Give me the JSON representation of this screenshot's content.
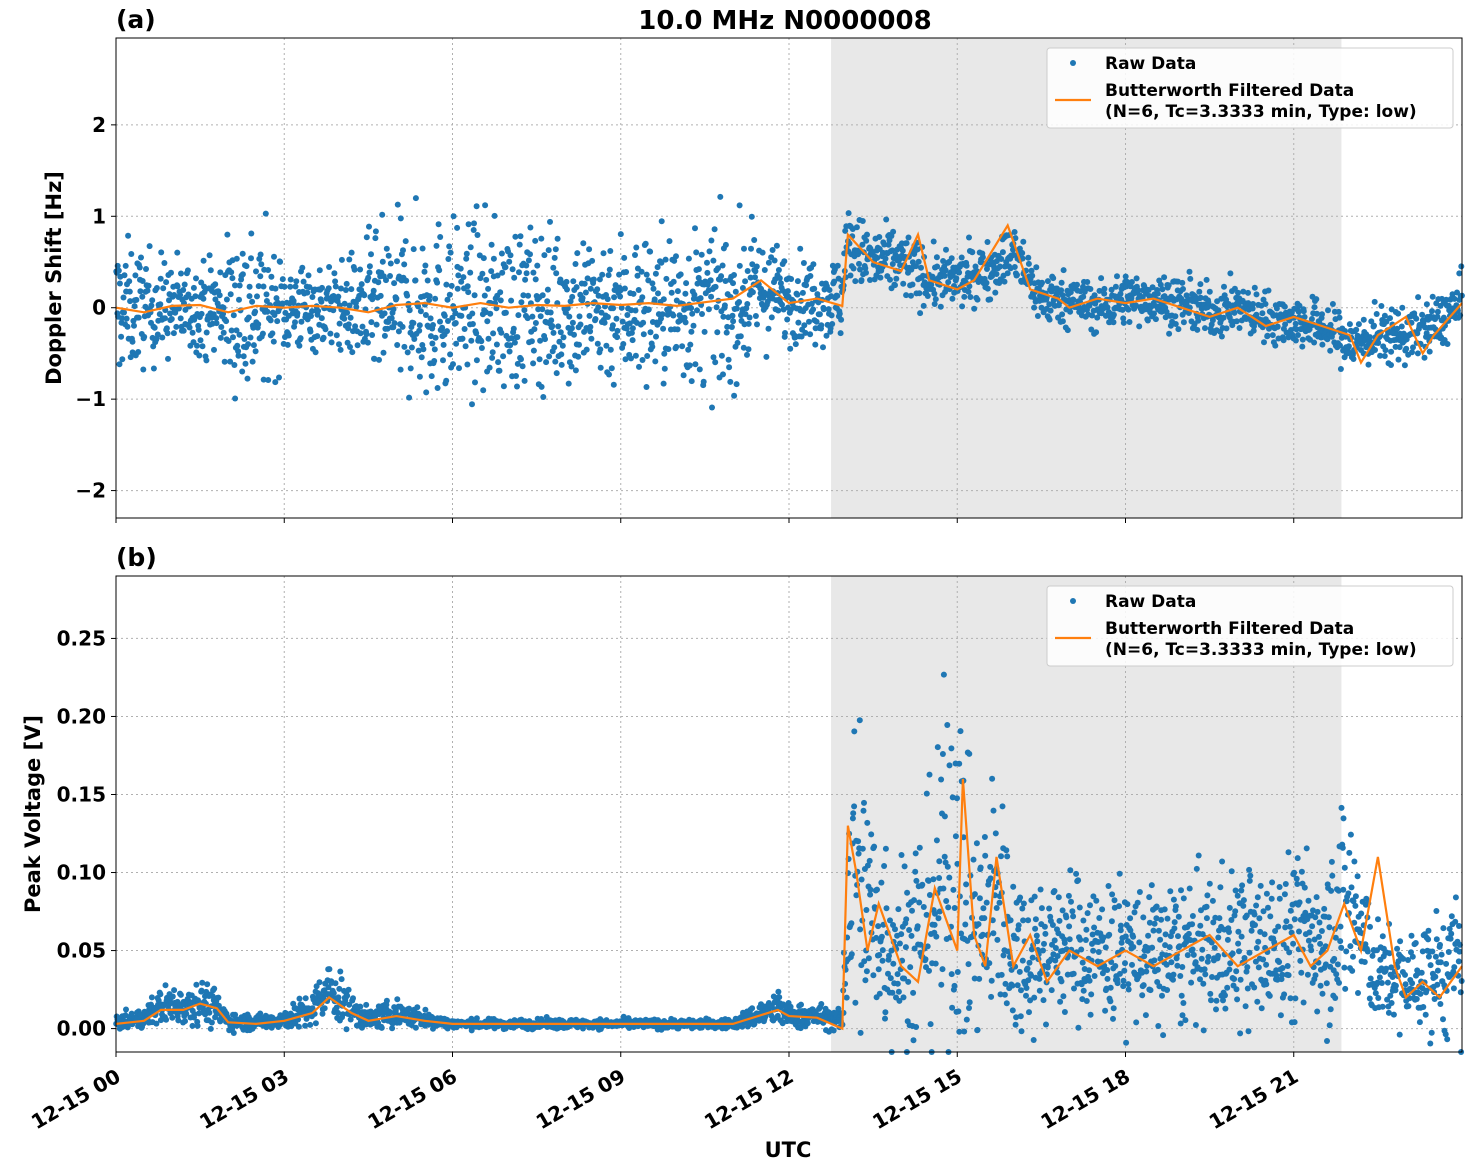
{
  "figure": {
    "title": "10.0 MHz N0000008",
    "xlabel": "UTC"
  },
  "colors": {
    "raw": "#1f77b4",
    "filtered": "#ff7f0e",
    "shade": "#e8e8e8",
    "grid": "#b0b0b0"
  },
  "chart_data": [
    {
      "type": "scatter",
      "panel_label": "(a)",
      "ylabel": "Doppler Shift [Hz]",
      "xlim_hours": [
        0,
        24
      ],
      "ylim": [
        -2.3,
        2.95
      ],
      "yticks": [
        -2,
        -1,
        0,
        1,
        2
      ],
      "ytick_labels": [
        "−2",
        "−1",
        "0",
        "1",
        "2"
      ],
      "xticks_hours": [
        0,
        3,
        6,
        9,
        12,
        15,
        18,
        21
      ],
      "xtick_labels": [
        "12-15 00",
        "12-15 03",
        "12-15 06",
        "12-15 09",
        "12-15 12",
        "12-15 15",
        "12-15 18",
        "12-15 21"
      ],
      "grid": true,
      "legend_position": "top-right",
      "shaded_span_hours": [
        12.75,
        21.85
      ],
      "series": [
        {
          "name": "Raw Data",
          "style": "points",
          "x_hours": [
            0,
            0.5,
            1,
            1.5,
            2,
            2.3,
            2.5,
            3,
            3.5,
            4,
            4.5,
            5,
            5.5,
            6,
            6.5,
            7,
            7.5,
            8,
            8.5,
            9,
            9.5,
            10,
            10.5,
            11,
            11.5,
            12,
            12.5,
            12.95,
            13,
            13.5,
            14,
            14.5,
            15,
            15.5,
            16,
            16.5,
            17,
            17.5,
            18,
            18.5,
            19,
            19.5,
            20,
            20.5,
            21,
            21.5,
            22,
            22.5,
            23,
            23.5,
            24
          ],
          "y_mean": [
            0,
            0,
            0,
            0,
            0,
            0,
            0,
            0,
            0,
            0,
            0,
            0,
            0,
            0,
            0,
            0,
            0,
            0,
            0,
            0,
            0,
            0,
            0,
            0,
            0.2,
            0.1,
            0.1,
            0.1,
            0.7,
            0.5,
            0.5,
            0.3,
            0.3,
            0.4,
            0.6,
            0.1,
            0.1,
            0.0,
            0.1,
            0.1,
            0.05,
            -0.05,
            0.0,
            -0.1,
            -0.15,
            -0.2,
            -0.4,
            -0.3,
            -0.3,
            -0.2,
            0.05
          ],
          "y_spread": [
            0.5,
            0.4,
            0.35,
            0.3,
            0.5,
            0.7,
            0.6,
            0.35,
            0.3,
            0.3,
            0.5,
            0.6,
            0.65,
            0.6,
            0.6,
            0.6,
            0.55,
            0.55,
            0.55,
            0.55,
            0.55,
            0.55,
            0.55,
            0.55,
            0.4,
            0.3,
            0.3,
            0.3,
            0.25,
            0.25,
            0.25,
            0.2,
            0.2,
            0.2,
            0.2,
            0.2,
            0.18,
            0.18,
            0.18,
            0.18,
            0.18,
            0.18,
            0.18,
            0.18,
            0.18,
            0.18,
            0.2,
            0.2,
            0.2,
            0.2,
            0.2
          ]
        },
        {
          "name": "Butterworth Filtered Data\n(N=6, Tc=3.3333 min, Type: low)",
          "style": "line",
          "x_hours": [
            0,
            0.5,
            1,
            1.5,
            2,
            2.5,
            3,
            3.5,
            4,
            4.5,
            5,
            5.5,
            6,
            6.5,
            7,
            7.5,
            8,
            8.5,
            9,
            9.5,
            10,
            10.5,
            11,
            11.5,
            12,
            12.5,
            12.95,
            13.05,
            13.5,
            14,
            14.3,
            14.5,
            15,
            15.3,
            15.5,
            15.9,
            16.3,
            16.8,
            17,
            17.5,
            18,
            18.5,
            19,
            19.5,
            20,
            20.5,
            21,
            21.5,
            22,
            22.2,
            22.5,
            23,
            23.3,
            23.5,
            24
          ],
          "y": [
            0,
            -0.05,
            0.02,
            0.03,
            -0.05,
            0.02,
            0.0,
            0.02,
            0.0,
            -0.05,
            0.03,
            0.05,
            0.0,
            0.05,
            0.0,
            0.03,
            0.02,
            0.05,
            0.03,
            0.05,
            0.02,
            0.06,
            0.1,
            0.3,
            0.05,
            0.1,
            0.02,
            0.8,
            0.5,
            0.4,
            0.8,
            0.3,
            0.2,
            0.3,
            0.5,
            0.9,
            0.2,
            0.1,
            0.0,
            0.1,
            0.05,
            0.1,
            0.0,
            -0.1,
            0.0,
            -0.2,
            -0.1,
            -0.2,
            -0.3,
            -0.6,
            -0.3,
            -0.1,
            -0.5,
            -0.3,
            0.05
          ]
        }
      ]
    },
    {
      "type": "scatter",
      "panel_label": "(b)",
      "ylabel": "Peak Voltage [V]",
      "xlim_hours": [
        0,
        24
      ],
      "ylim": [
        -0.015,
        0.29
      ],
      "yticks": [
        0.0,
        0.05,
        0.1,
        0.15,
        0.2,
        0.25
      ],
      "ytick_labels": [
        "0.00",
        "0.05",
        "0.10",
        "0.15",
        "0.20",
        "0.25"
      ],
      "xticks_hours": [
        0,
        3,
        6,
        9,
        12,
        15,
        18,
        21
      ],
      "xtick_labels": [
        "12-15 00",
        "12-15 03",
        "12-15 06",
        "12-15 09",
        "12-15 12",
        "12-15 15",
        "12-15 18",
        "12-15 21"
      ],
      "grid": true,
      "legend_position": "top-right",
      "shaded_span_hours": [
        12.75,
        21.85
      ],
      "series": [
        {
          "name": "Raw Data",
          "style": "points",
          "x_hours": [
            0,
            0.5,
            0.8,
            1.2,
            1.5,
            1.8,
            2,
            2.5,
            3,
            3.5,
            3.8,
            4.2,
            4.5,
            5,
            5.5,
            6,
            7,
            8,
            9,
            10,
            11,
            11.8,
            12,
            12.5,
            12.95,
            13.05,
            13.2,
            13.5,
            14,
            14.5,
            15,
            15.2,
            15.5,
            15.7,
            16,
            16.5,
            17,
            17.5,
            18,
            18.5,
            19,
            19.5,
            20,
            20.5,
            21,
            21.5,
            22,
            22.3,
            22.5,
            23,
            23.5,
            24
          ],
          "y_mean": [
            0.004,
            0.006,
            0.015,
            0.015,
            0.018,
            0.012,
            0.005,
            0.004,
            0.006,
            0.012,
            0.025,
            0.012,
            0.006,
            0.01,
            0.006,
            0.003,
            0.003,
            0.003,
            0.003,
            0.003,
            0.003,
            0.013,
            0.008,
            0.008,
            0.005,
            0.09,
            0.1,
            0.07,
            0.05,
            0.07,
            0.12,
            0.07,
            0.06,
            0.09,
            0.05,
            0.05,
            0.055,
            0.05,
            0.05,
            0.045,
            0.05,
            0.05,
            0.055,
            0.05,
            0.06,
            0.06,
            0.08,
            0.05,
            0.035,
            0.03,
            0.035,
            0.04
          ],
          "y_spread": [
            0.003,
            0.004,
            0.008,
            0.008,
            0.009,
            0.008,
            0.004,
            0.003,
            0.004,
            0.008,
            0.012,
            0.008,
            0.004,
            0.006,
            0.004,
            0.002,
            0.002,
            0.002,
            0.002,
            0.002,
            0.002,
            0.008,
            0.005,
            0.005,
            0.004,
            0.07,
            0.08,
            0.05,
            0.04,
            0.05,
            0.09,
            0.05,
            0.045,
            0.06,
            0.035,
            0.03,
            0.03,
            0.03,
            0.03,
            0.03,
            0.03,
            0.03,
            0.035,
            0.03,
            0.035,
            0.035,
            0.05,
            0.03,
            0.02,
            0.02,
            0.025,
            0.03
          ]
        },
        {
          "name": "Butterworth Filtered Data\n(N=6, Tc=3.3333 min, Type: low)",
          "style": "line",
          "x_hours": [
            0,
            0.5,
            0.8,
            1.2,
            1.5,
            1.8,
            2,
            2.5,
            3,
            3.5,
            3.8,
            4.2,
            4.5,
            5,
            5.5,
            6,
            7,
            8,
            9,
            10,
            11,
            11.8,
            12,
            12.5,
            12.95,
            13.05,
            13.2,
            13.4,
            13.6,
            13.8,
            14,
            14.3,
            14.6,
            15,
            15.1,
            15.3,
            15.5,
            15.7,
            16,
            16.3,
            16.6,
            17,
            17.5,
            18,
            18.5,
            19,
            19.5,
            20,
            20.5,
            21,
            21.3,
            21.6,
            21.9,
            22.2,
            22.5,
            22.8,
            23,
            23.3,
            23.6,
            24
          ],
          "y": [
            0.003,
            0.005,
            0.012,
            0.012,
            0.016,
            0.013,
            0.004,
            0.003,
            0.005,
            0.01,
            0.02,
            0.01,
            0.005,
            0.008,
            0.005,
            0.003,
            0.003,
            0.003,
            0.003,
            0.003,
            0.003,
            0.012,
            0.008,
            0.007,
            0.0,
            0.13,
            0.1,
            0.05,
            0.08,
            0.06,
            0.04,
            0.03,
            0.09,
            0.05,
            0.16,
            0.06,
            0.04,
            0.11,
            0.04,
            0.06,
            0.03,
            0.05,
            0.04,
            0.05,
            0.04,
            0.05,
            0.06,
            0.04,
            0.05,
            0.06,
            0.04,
            0.05,
            0.08,
            0.05,
            0.11,
            0.04,
            0.02,
            0.03,
            0.02,
            0.04
          ]
        }
      ]
    }
  ]
}
